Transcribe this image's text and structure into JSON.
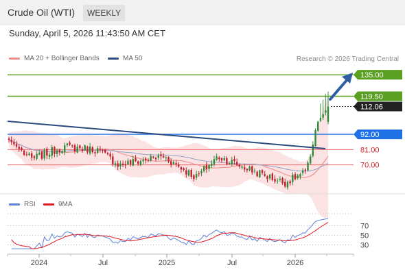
{
  "header": {
    "title": "Crude Oil (WTI)",
    "timeframe": "WEEKLY"
  },
  "datetime": "Sunday, April 5, 2026 11:43:50 AM CET",
  "copyright": "Research © 2026 Trading Central",
  "legend": {
    "ma20": {
      "label": "MA 20 + Bollinger Bands",
      "color": "#f08c8c"
    },
    "ma50": {
      "label": "MA 50",
      "color": "#2c4a80"
    }
  },
  "rsi_legend": {
    "rsi": {
      "label": "RSI",
      "color": "#5b7fd9"
    },
    "ma9": {
      "label": "9MA",
      "color": "#e0141e"
    }
  },
  "colors": {
    "up": "#2e8b3a",
    "down": "#c0202e",
    "blue_level": "#1f6fe5",
    "green_level": "#5aa023",
    "red_level": "#ea6f6f",
    "current": "#222222"
  },
  "chart_data": [
    {
      "type": "candlestick",
      "title": "Crude Oil (WTI)",
      "x_tick_labels": [
        "2024",
        "Jul",
        "2025",
        "Jul",
        "2026"
      ],
      "ylim": [
        50,
        142
      ],
      "price_levels": [
        {
          "label": "135.00",
          "value": 135.0,
          "kind": "target"
        },
        {
          "label": "119.50",
          "value": 119.5,
          "kind": "resistance"
        },
        {
          "label": "112.06",
          "value": 112.06,
          "kind": "current"
        },
        {
          "label": "92.00",
          "value": 92.0,
          "kind": "pivot"
        },
        {
          "label": "81.00",
          "value": 81.0,
          "kind": "support"
        },
        {
          "label": "70.00",
          "value": 70.0,
          "kind": "support"
        }
      ],
      "close_approx": [
        {
          "date": "2023-11",
          "close": 88
        },
        {
          "date": "2024-01",
          "close": 74
        },
        {
          "date": "2024-04",
          "close": 83
        },
        {
          "date": "2024-07",
          "close": 81
        },
        {
          "date": "2024-09",
          "close": 70
        },
        {
          "date": "2025-01",
          "close": 76
        },
        {
          "date": "2025-04",
          "close": 61
        },
        {
          "date": "2025-06",
          "close": 76
        },
        {
          "date": "2025-09",
          "close": 66
        },
        {
          "date": "2025-12",
          "close": 57
        },
        {
          "date": "2026-02",
          "close": 65
        },
        {
          "date": "2026-03",
          "close": 100
        },
        {
          "date": "2026-04",
          "close": 112.06
        }
      ]
    },
    {
      "type": "line",
      "title": "RSI",
      "y_tick_labels": [
        "70",
        "50",
        "30"
      ],
      "ylim": [
        15,
        95
      ],
      "series": [
        {
          "name": "RSI"
        },
        {
          "name": "9MA"
        }
      ]
    }
  ]
}
